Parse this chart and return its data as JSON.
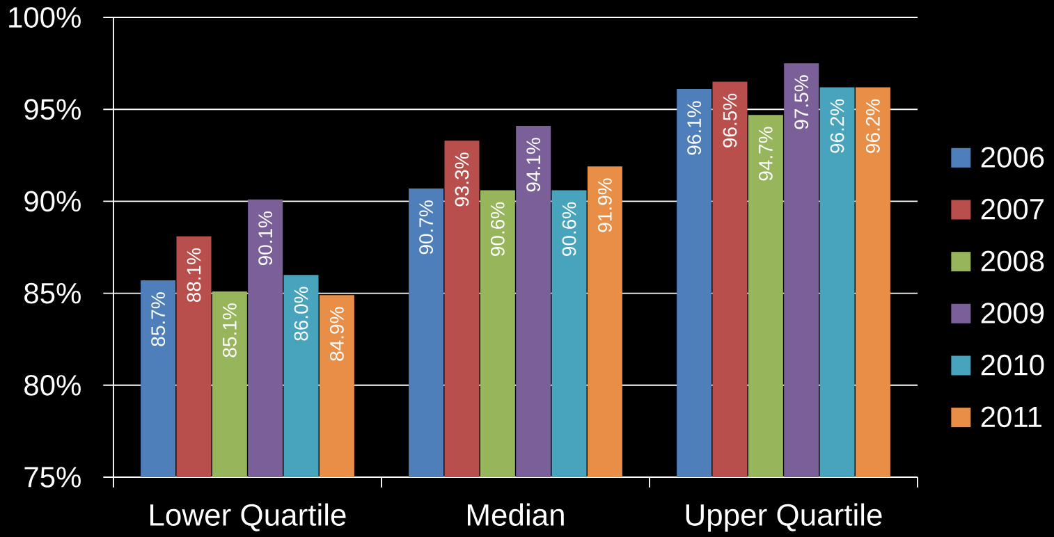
{
  "chart_data": {
    "type": "bar",
    "categories": [
      "Lower Quartile",
      "Median",
      "Upper Quartile"
    ],
    "series": [
      {
        "name": "2006",
        "color": "#4f7fbb",
        "values": [
          85.7,
          90.7,
          96.1
        ],
        "value_labels": [
          "85.7%",
          "90.7%",
          "96.1%"
        ]
      },
      {
        "name": "2007",
        "color": "#b94f4c",
        "values": [
          88.1,
          93.3,
          96.5
        ],
        "value_labels": [
          "88.1%",
          "93.3%",
          "96.5%"
        ]
      },
      {
        "name": "2008",
        "color": "#97b55a",
        "values": [
          85.1,
          90.6,
          94.7
        ],
        "value_labels": [
          "85.1%",
          "90.6%",
          "94.7%"
        ]
      },
      {
        "name": "2009",
        "color": "#7a5f99",
        "values": [
          90.1,
          94.1,
          97.5
        ],
        "value_labels": [
          "90.1%",
          "94.1%",
          "97.5%"
        ]
      },
      {
        "name": "2010",
        "color": "#48a3bc",
        "values": [
          86.0,
          90.6,
          96.2
        ],
        "value_labels": [
          "86.0%",
          "90.6%",
          "96.2%"
        ]
      },
      {
        "name": "2011",
        "color": "#e98e47",
        "values": [
          84.9,
          91.9,
          96.2
        ],
        "value_labels": [
          "84.9%",
          "91.9%",
          "96.2%"
        ]
      }
    ],
    "ylim": [
      75,
      100
    ],
    "yticks": [
      {
        "value": 75,
        "label": "75%"
      },
      {
        "value": 80,
        "label": "80%"
      },
      {
        "value": 85,
        "label": "85%"
      },
      {
        "value": 90,
        "label": "90%"
      },
      {
        "value": 95,
        "label": "95%"
      },
      {
        "value": 100,
        "label": "100%"
      }
    ],
    "grid": "y",
    "legend": "right"
  }
}
